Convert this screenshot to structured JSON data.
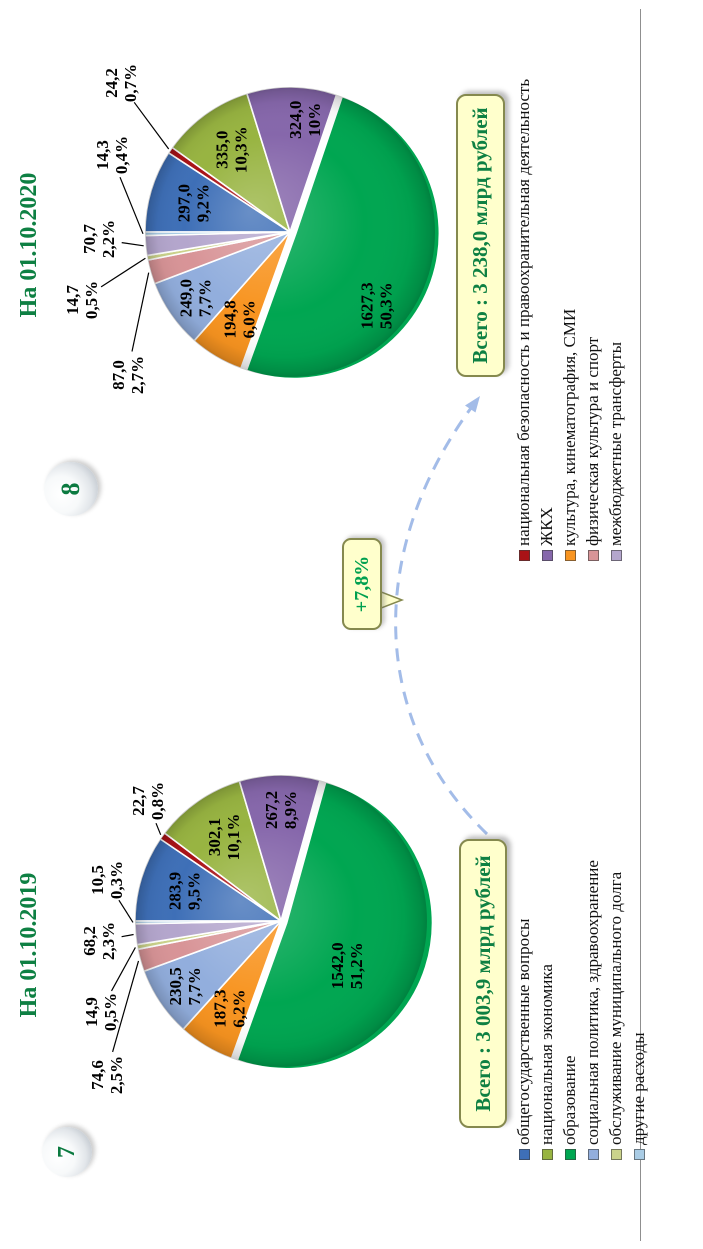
{
  "slide": {
    "background": "#ffffff",
    "divider_color": "#8a8a8a"
  },
  "callout": {
    "text": "+7,8%",
    "arrow_style": "dashed-curve",
    "arrow_color": "#A3BCE8"
  },
  "colors": {
    "title_green": "#0E8043",
    "box_bg": "#FFFFCC",
    "box_border": "#85894E"
  },
  "legend": {
    "left_column": [
      "общегосударственные вопросы",
      "национальная экономика",
      "образование",
      "социальная политика, здравоохранение",
      "обслуживание муниципального долга",
      "другие расходы"
    ],
    "right_column": [
      "национальная безопасность и правоохранительная деятельность",
      "ЖКХ",
      "культура, кинематография, СМИ",
      "физическая культура и спорт",
      "межбюджетные трансферты"
    ]
  },
  "chart_data": [
    {
      "type": "pie",
      "title": "На 01.10.2019",
      "page_badge": "7",
      "total_label": "Всего : 3 003,9 млрд рублей",
      "total_value": 3003.9,
      "units": "млрд рублей",
      "slices": [
        {
          "category": "общегосударственные вопросы",
          "value": 283.9,
          "value_label": "283,9",
          "percent": 9.5,
          "percent_label": "9,5%",
          "color": "#3E6FB7",
          "label_placement": "inside"
        },
        {
          "category": "национальная безопасность и правоохранительная деятельность",
          "value": 22.7,
          "value_label": "22,7",
          "percent": 0.8,
          "percent_label": "0,8%",
          "color": "#A91216",
          "label_placement": "outside"
        },
        {
          "category": "национальная экономика",
          "value": 302.1,
          "value_label": "302,1",
          "percent": 10.1,
          "percent_label": "10,1%",
          "color": "#98B441",
          "label_placement": "inside"
        },
        {
          "category": "ЖКХ",
          "value": 267.2,
          "value_label": "267,2",
          "percent": 8.9,
          "percent_label": "8,9%",
          "color": "#8667AB",
          "label_placement": "inside"
        },
        {
          "category": "образование",
          "value": 1542.0,
          "value_label": "1542,0",
          "percent": 51.2,
          "percent_label": "51,2%",
          "color": "#00A651",
          "label_placement": "inside"
        },
        {
          "category": "культура, кинематография, СМИ",
          "value": 187.3,
          "value_label": "187,3",
          "percent": 6.2,
          "percent_label": "6,2%",
          "color": "#F89420",
          "label_placement": "inside"
        },
        {
          "category": "социальная политика, здравоохранение",
          "value": 230.5,
          "value_label": "230,5",
          "percent": 7.7,
          "percent_label": "7,7%",
          "color": "#92AEDD",
          "label_placement": "inside"
        },
        {
          "category": "физическая культура и спорт",
          "value": 74.6,
          "value_label": "74,6",
          "percent": 2.5,
          "percent_label": "2,5%",
          "color": "#D89497",
          "label_placement": "outside"
        },
        {
          "category": "обслуживание муниципального долга",
          "value": 14.9,
          "value_label": "14,9",
          "percent": 0.5,
          "percent_label": "0,5%",
          "color": "#CBD38B",
          "label_placement": "outside"
        },
        {
          "category": "межбюджетные трансферты",
          "value": 68.2,
          "value_label": "68,2",
          "percent": 2.3,
          "percent_label": "2,3%",
          "color": "#B4A6CD",
          "label_placement": "outside"
        },
        {
          "category": "другие расходы",
          "value": 10.5,
          "value_label": "10,5",
          "percent": 0.3,
          "percent_label": "0,3%",
          "color": "#A9CCE5",
          "label_placement": "outside"
        }
      ]
    },
    {
      "type": "pie",
      "title": "На 01.10.2020",
      "page_badge": "8",
      "total_label": "Всего : 3 238,0 млрд рублей",
      "total_value": 3238.0,
      "units": "млрд рублей",
      "slices": [
        {
          "category": "общегосударственные вопросы",
          "value": 297.0,
          "value_label": "297,0",
          "percent": 9.2,
          "percent_label": "9,2%",
          "color": "#3E6FB7",
          "label_placement": "inside"
        },
        {
          "category": "национальная безопасность и правоохранительная деятельность",
          "value": 24.2,
          "value_label": "24,2",
          "percent": 0.7,
          "percent_label": "0,7%",
          "color": "#A91216",
          "label_placement": "outside"
        },
        {
          "category": "национальная экономика",
          "value": 335.0,
          "value_label": "335,0",
          "percent": 10.3,
          "percent_label": "10,3%",
          "color": "#98B441",
          "label_placement": "inside"
        },
        {
          "category": "ЖКХ",
          "value": 324.0,
          "value_label": "324,0",
          "percent": 10.0,
          "percent_label": "10%",
          "color": "#8667AB",
          "label_placement": "inside"
        },
        {
          "category": "образование",
          "value": 1627.3,
          "value_label": "1627,3",
          "percent": 50.3,
          "percent_label": "50,3%",
          "color": "#00A651",
          "label_placement": "inside"
        },
        {
          "category": "культура, кинематография, СМИ",
          "value": 194.8,
          "value_label": "194,8",
          "percent": 6.0,
          "percent_label": "6,0%",
          "color": "#F89420",
          "label_placement": "inside"
        },
        {
          "category": "социальная политика, здравоохранение",
          "value": 249.0,
          "value_label": "249,0",
          "percent": 7.7,
          "percent_label": "7,7%",
          "color": "#92AEDD",
          "label_placement": "inside"
        },
        {
          "category": "физическая культура и спорт",
          "value": 87.0,
          "value_label": "87,0",
          "percent": 2.7,
          "percent_label": "2,7%",
          "color": "#D89497",
          "label_placement": "outside"
        },
        {
          "category": "обслуживание муниципального долга",
          "value": 14.7,
          "value_label": "14,7",
          "percent": 0.5,
          "percent_label": "0,5%",
          "color": "#CBD38B",
          "label_placement": "outside"
        },
        {
          "category": "межбюджетные трансферты",
          "value": 70.7,
          "value_label": "70,7",
          "percent": 2.2,
          "percent_label": "2,2%",
          "color": "#B4A6CD",
          "label_placement": "outside"
        },
        {
          "category": "другие расходы",
          "value": 14.3,
          "value_label": "14,3",
          "percent": 0.4,
          "percent_label": "0,4%",
          "color": "#A9CCE5",
          "label_placement": "outside"
        }
      ]
    }
  ]
}
